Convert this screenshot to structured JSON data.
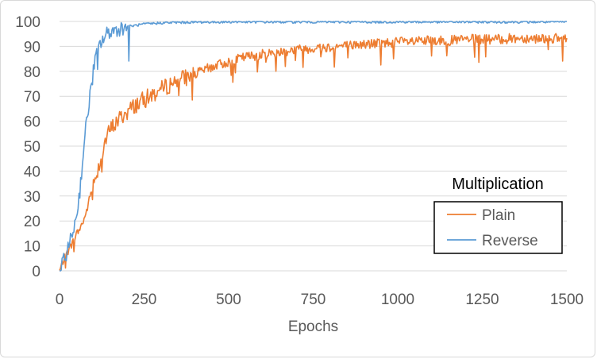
{
  "chart_data": {
    "type": "line",
    "title": "",
    "xlabel": "Epochs",
    "ylabel": "",
    "xlim": [
      0,
      1500
    ],
    "ylim": [
      0,
      100
    ],
    "x_ticks": [
      "0",
      "250",
      "500",
      "750",
      "1000",
      "1250",
      "1500"
    ],
    "y_ticks": [
      "0",
      "10",
      "20",
      "30",
      "40",
      "50",
      "60",
      "70",
      "80",
      "90",
      "100"
    ],
    "grid": "horizontal",
    "legend_position": "right-middle",
    "legend_title": "Multiplication",
    "series": [
      {
        "name": "Plain",
        "color": "#ed7d31",
        "x": [
          0,
          10,
          25,
          40,
          50,
          60,
          70,
          80,
          90,
          100,
          110,
          120,
          130,
          140,
          150,
          175,
          200,
          225,
          250,
          275,
          300,
          325,
          350,
          375,
          400,
          450,
          500,
          550,
          600,
          650,
          700,
          750,
          800,
          850,
          900,
          950,
          1000,
          1050,
          1100,
          1150,
          1200,
          1250,
          1300,
          1350,
          1400,
          1450,
          1500
        ],
        "values": [
          0,
          4,
          8,
          12,
          15,
          17,
          20,
          24,
          30,
          35,
          40,
          44,
          50,
          54,
          57,
          61,
          64,
          67,
          69,
          71,
          73,
          75,
          77,
          78,
          79,
          82,
          84,
          86,
          87,
          88,
          89,
          89.5,
          90,
          90.5,
          91,
          91.5,
          92,
          92,
          92.5,
          92.5,
          93,
          93,
          93,
          93.5,
          93.5,
          93.5,
          93
        ]
      },
      {
        "name": "Reverse",
        "color": "#5b9bd5",
        "x": [
          0,
          10,
          20,
          30,
          40,
          50,
          60,
          70,
          80,
          90,
          100,
          110,
          120,
          130,
          140,
          150,
          175,
          200,
          225,
          250,
          300,
          350,
          400,
          500,
          600,
          700,
          800,
          900,
          1000,
          1100,
          1200,
          1300,
          1400,
          1500
        ],
        "values": [
          0,
          3,
          7,
          11,
          16,
          22,
          32,
          47,
          60,
          70,
          80,
          88,
          91,
          93,
          95,
          96,
          97,
          98,
          98.5,
          99,
          99.5,
          99.7,
          99.8,
          99.9,
          99.9,
          99.9,
          99.9,
          99.9,
          99.9,
          99.9,
          99.9,
          99.9,
          99.9,
          99.9
        ]
      }
    ]
  }
}
